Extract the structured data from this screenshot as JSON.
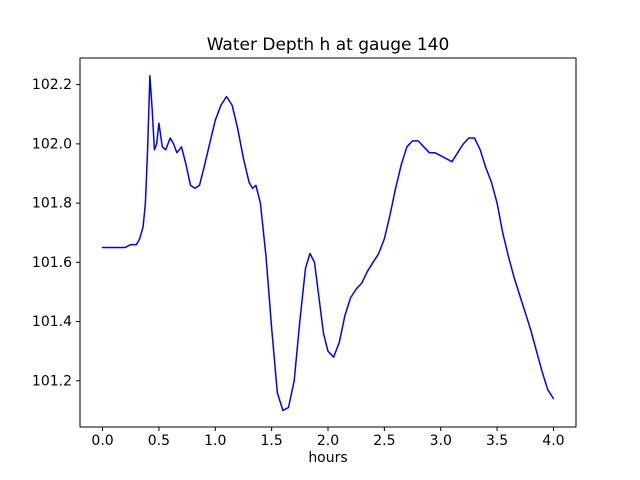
{
  "chart_data": {
    "type": "line",
    "title": "Water Depth h at gauge 140",
    "xlabel": "hours",
    "ylabel": "",
    "line_color": "#0000ff",
    "grid": false,
    "legend": "none",
    "xlim": [
      -0.2,
      4.2
    ],
    "ylim": [
      101.044,
      102.29
    ],
    "xticks": [
      0.0,
      0.5,
      1.0,
      1.5,
      2.0,
      2.5,
      3.0,
      3.5,
      4.0
    ],
    "xtick_labels": [
      "0.0",
      "0.5",
      "1.0",
      "1.5",
      "2.0",
      "2.5",
      "3.0",
      "3.5",
      "4.0"
    ],
    "yticks": [
      101.2,
      101.4,
      101.6,
      101.8,
      102.0,
      102.2
    ],
    "ytick_labels": [
      "101.2",
      "101.4",
      "101.6",
      "101.8",
      "102.0",
      "102.2"
    ],
    "x": [
      0.0,
      0.05,
      0.1,
      0.15,
      0.2,
      0.25,
      0.3,
      0.33,
      0.36,
      0.38,
      0.4,
      0.42,
      0.44,
      0.46,
      0.48,
      0.5,
      0.53,
      0.56,
      0.6,
      0.63,
      0.66,
      0.7,
      0.74,
      0.78,
      0.82,
      0.86,
      0.9,
      0.95,
      1.0,
      1.05,
      1.1,
      1.15,
      1.2,
      1.25,
      1.3,
      1.33,
      1.36,
      1.4,
      1.45,
      1.5,
      1.55,
      1.6,
      1.65,
      1.7,
      1.75,
      1.8,
      1.84,
      1.88,
      1.92,
      1.96,
      2.0,
      2.05,
      2.1,
      2.15,
      2.2,
      2.25,
      2.3,
      2.35,
      2.4,
      2.45,
      2.5,
      2.55,
      2.6,
      2.65,
      2.7,
      2.75,
      2.8,
      2.85,
      2.9,
      2.95,
      3.0,
      3.05,
      3.1,
      3.15,
      3.2,
      3.25,
      3.3,
      3.35,
      3.4,
      3.45,
      3.5,
      3.55,
      3.6,
      3.65,
      3.7,
      3.75,
      3.8,
      3.85,
      3.9,
      3.95,
      4.0
    ],
    "y": [
      101.65,
      101.65,
      101.65,
      101.65,
      101.65,
      101.66,
      101.66,
      101.68,
      101.72,
      101.8,
      101.98,
      102.23,
      102.12,
      101.98,
      102.0,
      102.07,
      101.99,
      101.98,
      102.02,
      102.0,
      101.97,
      101.99,
      101.93,
      101.86,
      101.85,
      101.86,
      101.92,
      102.0,
      102.08,
      102.13,
      102.16,
      102.13,
      102.05,
      101.95,
      101.87,
      101.85,
      101.86,
      101.8,
      101.62,
      101.38,
      101.16,
      101.1,
      101.11,
      101.2,
      101.4,
      101.58,
      101.63,
      101.6,
      101.48,
      101.36,
      101.3,
      101.28,
      101.33,
      101.42,
      101.48,
      101.51,
      101.53,
      101.57,
      101.6,
      101.63,
      101.68,
      101.76,
      101.85,
      101.93,
      101.99,
      102.01,
      102.01,
      101.99,
      101.97,
      101.97,
      101.96,
      101.95,
      101.94,
      101.97,
      102.0,
      102.02,
      102.02,
      101.98,
      101.92,
      101.87,
      101.8,
      101.7,
      101.62,
      101.55,
      101.49,
      101.43,
      101.37,
      101.3,
      101.23,
      101.17,
      101.14
    ]
  }
}
